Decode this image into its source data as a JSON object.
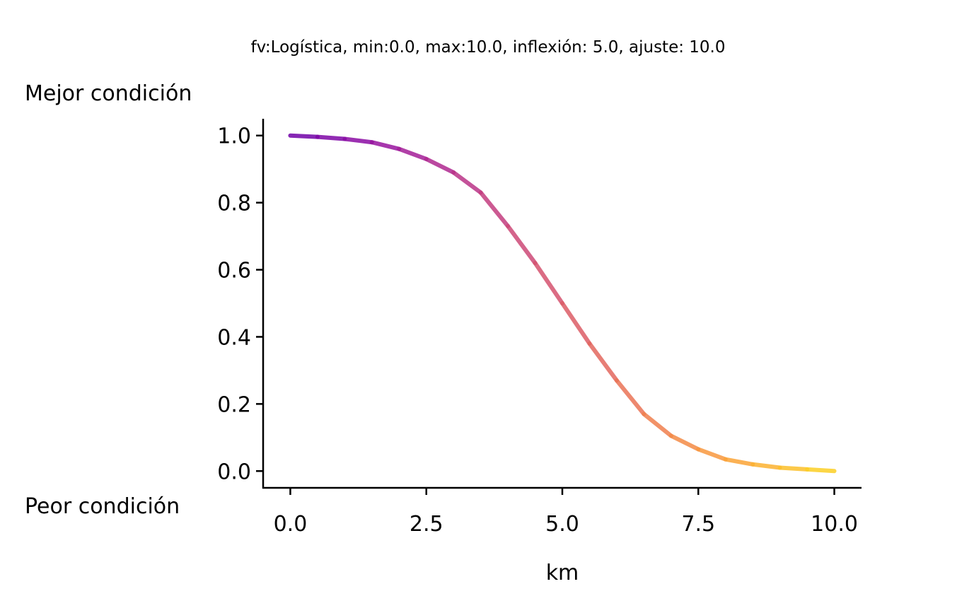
{
  "chart_data": {
    "type": "line",
    "title": "fv:Logística, min:0.0, max:10.0, inflexión: 5.0, ajuste: 10.0",
    "xlabel": "km",
    "ylabel": "",
    "top_annotation": "Mejor condición",
    "bottom_annotation": "Peor condición",
    "xlim": [
      -0.5,
      10.5
    ],
    "ylim": [
      -0.05,
      1.05
    ],
    "x_ticks": [
      "0.0",
      "2.5",
      "5.0",
      "7.5",
      "10.0"
    ],
    "y_ticks": [
      "0.0",
      "0.2",
      "0.4",
      "0.6",
      "0.8",
      "1.0"
    ],
    "grid": false,
    "colormap": "plasma",
    "series": [
      {
        "x": [
          0,
          0.5,
          1,
          1.5,
          2,
          2.5,
          3,
          3.5,
          4,
          4.5,
          5,
          5.5,
          6,
          6.5,
          7,
          7.5,
          8,
          8.5,
          9,
          9.5,
          10
        ],
        "y": [
          1.0,
          0.996,
          0.99,
          0.98,
          0.96,
          0.93,
          0.89,
          0.83,
          0.73,
          0.62,
          0.5,
          0.38,
          0.27,
          0.17,
          0.105,
          0.065,
          0.035,
          0.02,
          0.01,
          0.005,
          0.0
        ]
      }
    ]
  }
}
